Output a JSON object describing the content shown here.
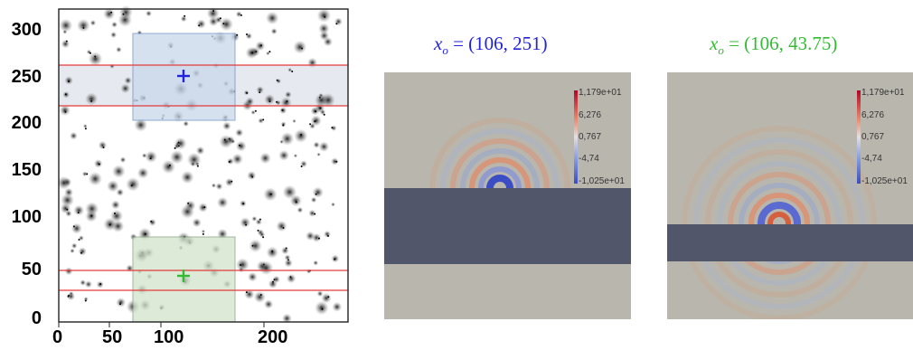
{
  "plot": {
    "y_ticks": [
      "300",
      "250",
      "200",
      "150",
      "100",
      "50",
      "0"
    ],
    "x_ticks": [
      "0",
      "50",
      "100",
      "200"
    ]
  },
  "panels": [
    {
      "title": "x_o = (106,251)",
      "title_var": "x",
      "title_sub": "o",
      "title_rest": " = (106, 251)",
      "color": "#2222dd"
    },
    {
      "title": "x_o = (106,43.75)",
      "title_var": "x",
      "title_sub": "o",
      "title_rest": " = (106, 43.75)",
      "color": "#33bb33"
    }
  ],
  "colorbar": {
    "labels": [
      "1,179e+01",
      "6,276",
      "0,767",
      "-4,74",
      "-1,025e+01"
    ]
  },
  "colors": {
    "blue_region": "#c9d8ec",
    "green_region": "#d2e3cc",
    "stripe": "#e6e9ef",
    "red_line": "#e33b3b",
    "wave_bg": "#b9b6ad",
    "slab": "#52566b"
  }
}
